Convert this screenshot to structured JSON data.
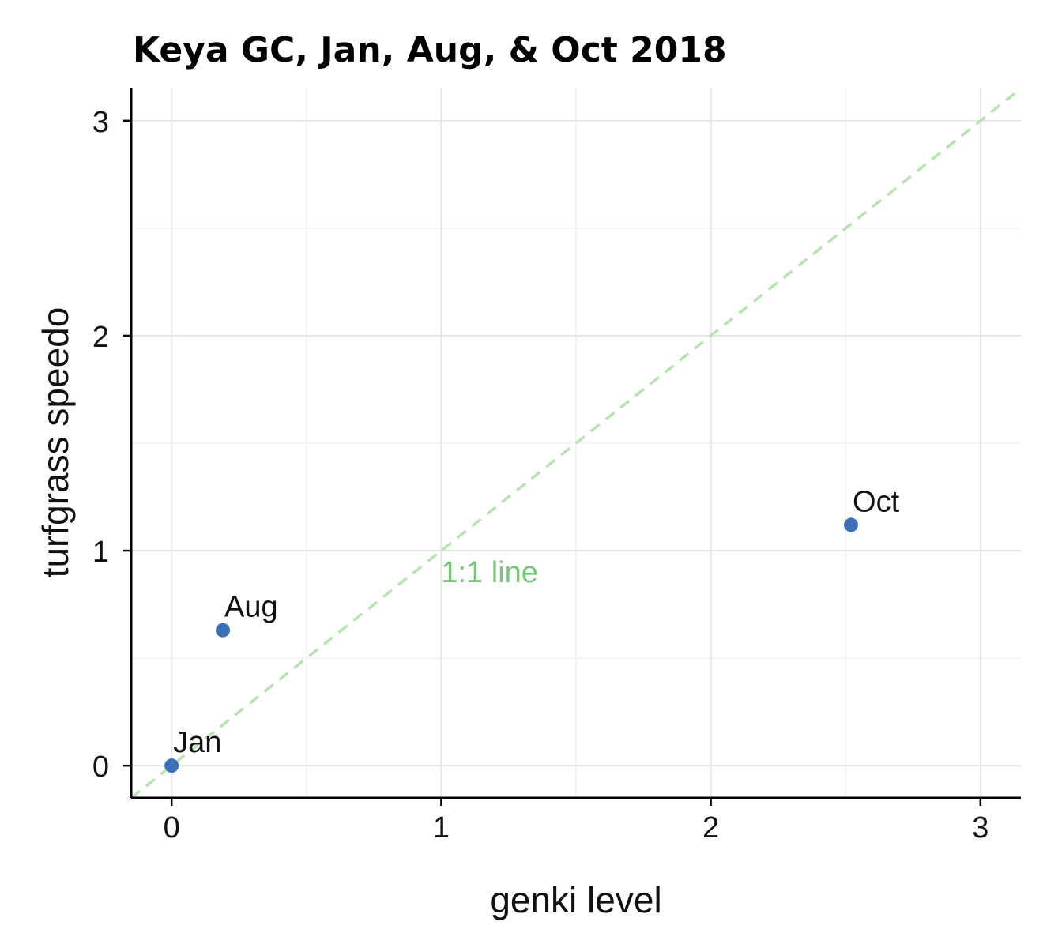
{
  "chart_data": {
    "type": "scatter",
    "title": "Keya GC, Jan, Aug, & Oct 2018",
    "xlabel": "genki level",
    "ylabel": "turfgrass speedo",
    "xlim": [
      -0.15,
      3.15
    ],
    "ylim": [
      -0.15,
      3.15
    ],
    "xticks": [
      0,
      1,
      2,
      3
    ],
    "yticks": [
      0,
      1,
      2,
      3
    ],
    "grid": true,
    "points": [
      {
        "label": "Jan",
        "x": 0.0,
        "y": 0.0
      },
      {
        "label": "Aug",
        "x": 0.19,
        "y": 0.63
      },
      {
        "label": "Oct",
        "x": 2.52,
        "y": 1.12
      }
    ],
    "reference_line": {
      "label": "1:1 line",
      "slope": 1,
      "intercept": 0,
      "style": "dashed",
      "label_at": [
        1.0,
        1.0
      ]
    },
    "colors": {
      "points": "#3d6fb6",
      "reference": "#78c47a",
      "reference_line": "#b9e2b3",
      "grid_major": "#e6e6e6",
      "grid_minor": "#f4f4f4",
      "axis": "#000000"
    }
  }
}
